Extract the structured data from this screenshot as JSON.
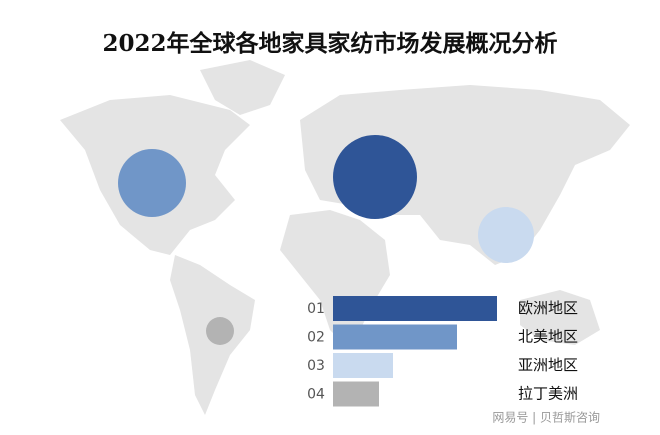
{
  "chart_data": {
    "type": "bar",
    "title": "2022年全球各地家具家纺市场发展概况分析",
    "ranks": [
      "01",
      "02",
      "03",
      "04"
    ],
    "categories": [
      "欧洲地区",
      "北美地区",
      "亚洲地区",
      "拉丁美洲"
    ],
    "values": [
      164,
      124,
      60,
      46
    ],
    "sizes": [
      42,
      34,
      28,
      14
    ],
    "colors": [
      "#2f5597",
      "#7096c8",
      "#c9daef",
      "#b3b3b3"
    ]
  },
  "watermark": "网易号 | 贝哲斯咨询"
}
